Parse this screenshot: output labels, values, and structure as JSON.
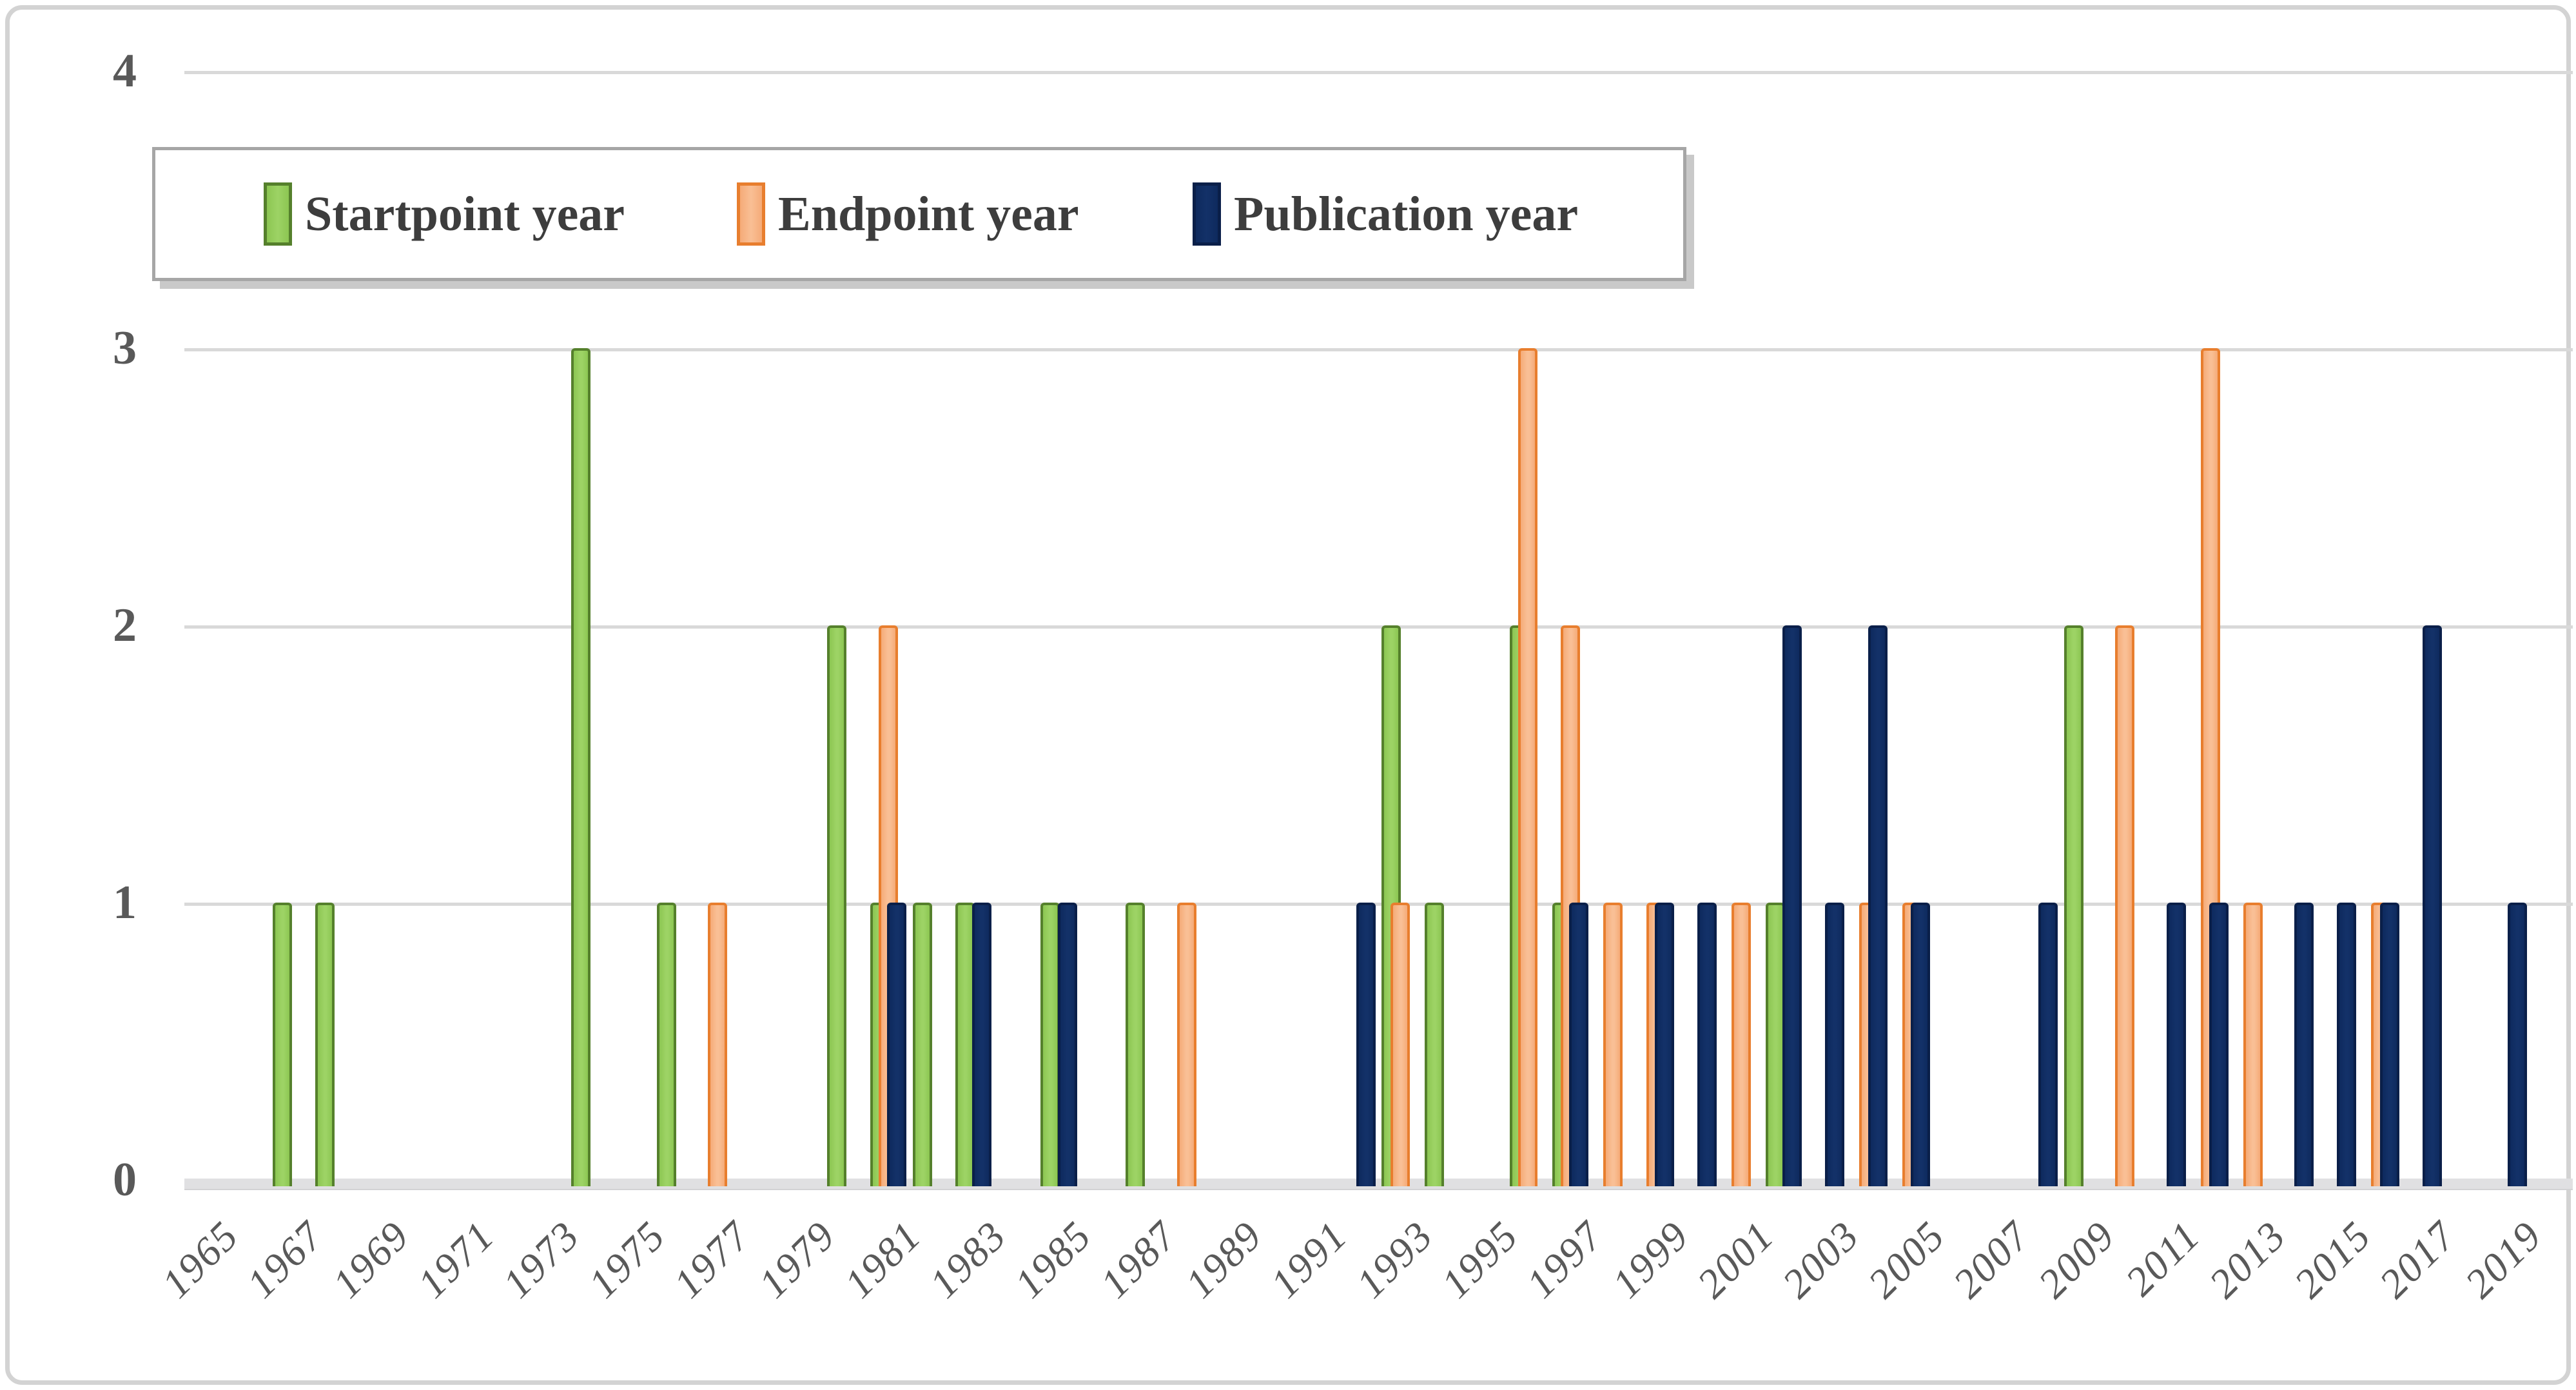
{
  "chart_data": {
    "type": "bar",
    "title": "",
    "categories": [
      1965,
      1966,
      1967,
      1968,
      1969,
      1970,
      1971,
      1972,
      1973,
      1974,
      1975,
      1976,
      1977,
      1978,
      1979,
      1980,
      1981,
      1982,
      1983,
      1984,
      1985,
      1986,
      1987,
      1988,
      1989,
      1990,
      1991,
      1992,
      1993,
      1994,
      1995,
      1996,
      1997,
      1998,
      1999,
      2000,
      2001,
      2002,
      2003,
      2004,
      2005,
      2006,
      2007,
      2008,
      2009,
      2010,
      2011,
      2012,
      2013,
      2014,
      2015,
      2016,
      2017,
      2018,
      2019,
      2020
    ],
    "xtick_labels": [
      "1965",
      "1967",
      "1969",
      "1971",
      "1973",
      "1975",
      "1977",
      "1979",
      "1981",
      "1983",
      "1985",
      "1987",
      "1989",
      "1991",
      "1993",
      "1995",
      "1997",
      "1999",
      "2001",
      "2003",
      "2005",
      "2007",
      "2009",
      "2011",
      "2013",
      "2015",
      "2017",
      "2019"
    ],
    "ytick_labels": [
      "4",
      "3",
      "2",
      "1",
      "0"
    ],
    "yticks": [
      4,
      3,
      2,
      1,
      0
    ],
    "ylim": [
      0,
      4
    ],
    "grid": "horizontal",
    "legend_position": "top-left-inside",
    "series": [
      {
        "name": "Startpoint year",
        "fill": "#8cc652",
        "fill_light": "#9dd365",
        "border": "#55802c",
        "values": [
          0,
          0,
          1,
          1,
          0,
          0,
          0,
          0,
          0,
          3,
          0,
          1,
          0,
          0,
          0,
          2,
          1,
          1,
          1,
          0,
          1,
          0,
          1,
          0,
          0,
          0,
          0,
          0,
          2,
          1,
          0,
          2,
          1,
          0,
          0,
          0,
          0,
          1,
          0,
          0,
          0,
          0,
          0,
          0,
          2,
          0,
          0,
          0,
          0,
          0,
          0,
          0,
          0,
          0,
          0,
          0
        ]
      },
      {
        "name": "Endpoint year",
        "fill": "#f5ab78",
        "fill_light": "#f9bf95",
        "border": "#e87e2e",
        "values": [
          0,
          0,
          0,
          0,
          0,
          0,
          0,
          0,
          0,
          0,
          0,
          0,
          1,
          0,
          0,
          0,
          2,
          0,
          0,
          0,
          0,
          0,
          0,
          1,
          0,
          0,
          0,
          0,
          1,
          0,
          0,
          3,
          2,
          1,
          1,
          0,
          1,
          0,
          0,
          1,
          1,
          0,
          0,
          0,
          0,
          2,
          0,
          3,
          1,
          0,
          0,
          1,
          0,
          0,
          0,
          0
        ]
      },
      {
        "name": "Publication year",
        "fill": "#0e2a5e",
        "fill_light": "#133168",
        "border": "#0a1f49",
        "values": [
          0,
          0,
          0,
          0,
          0,
          0,
          0,
          0,
          0,
          0,
          0,
          0,
          0,
          0,
          0,
          0,
          1,
          0,
          1,
          0,
          1,
          0,
          0,
          0,
          0,
          0,
          0,
          1,
          0,
          0,
          0,
          0,
          1,
          0,
          1,
          1,
          0,
          2,
          1,
          2,
          1,
          0,
          0,
          1,
          0,
          0,
          1,
          1,
          0,
          1,
          1,
          1,
          2,
          0,
          1,
          0
        ]
      }
    ]
  }
}
